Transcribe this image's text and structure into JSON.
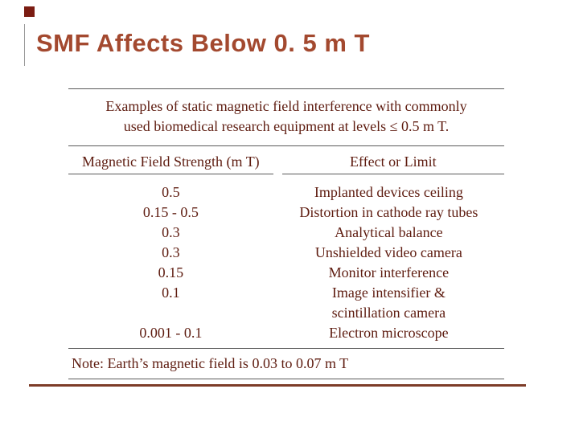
{
  "slide": {
    "title": "SMF Affects Below 0. 5 m T",
    "title_color": "#a3492f",
    "text_color": "#5e1c10",
    "accent_square_color": "#7b1c12",
    "bottom_rule_color": "#7d3c28"
  },
  "table": {
    "caption": "Examples of static magnetic field interference with commonly\nused biomedical research equipment at levels ≤ 0.5 m T.",
    "headers": [
      "Magnetic Field Strength (m T)",
      "Effect or Limit"
    ],
    "rows": [
      {
        "strength": "0.5",
        "effect": "Implanted devices ceiling"
      },
      {
        "strength": "0.15 - 0.5",
        "effect": "Distortion in cathode ray tubes"
      },
      {
        "strength": "0.3",
        "effect": "Analytical balance"
      },
      {
        "strength": "0.3",
        "effect": "Unshielded video camera"
      },
      {
        "strength": "0.15",
        "effect": "Monitor interference"
      },
      {
        "strength": "0.1",
        "effect": "Image intensifier &\nscintillation camera"
      },
      {
        "strength": "0.001 - 0.1",
        "effect": "Electron microscope"
      }
    ],
    "note": "Note:  Earth’s magnetic field is 0.03 to 0.07 m T"
  }
}
